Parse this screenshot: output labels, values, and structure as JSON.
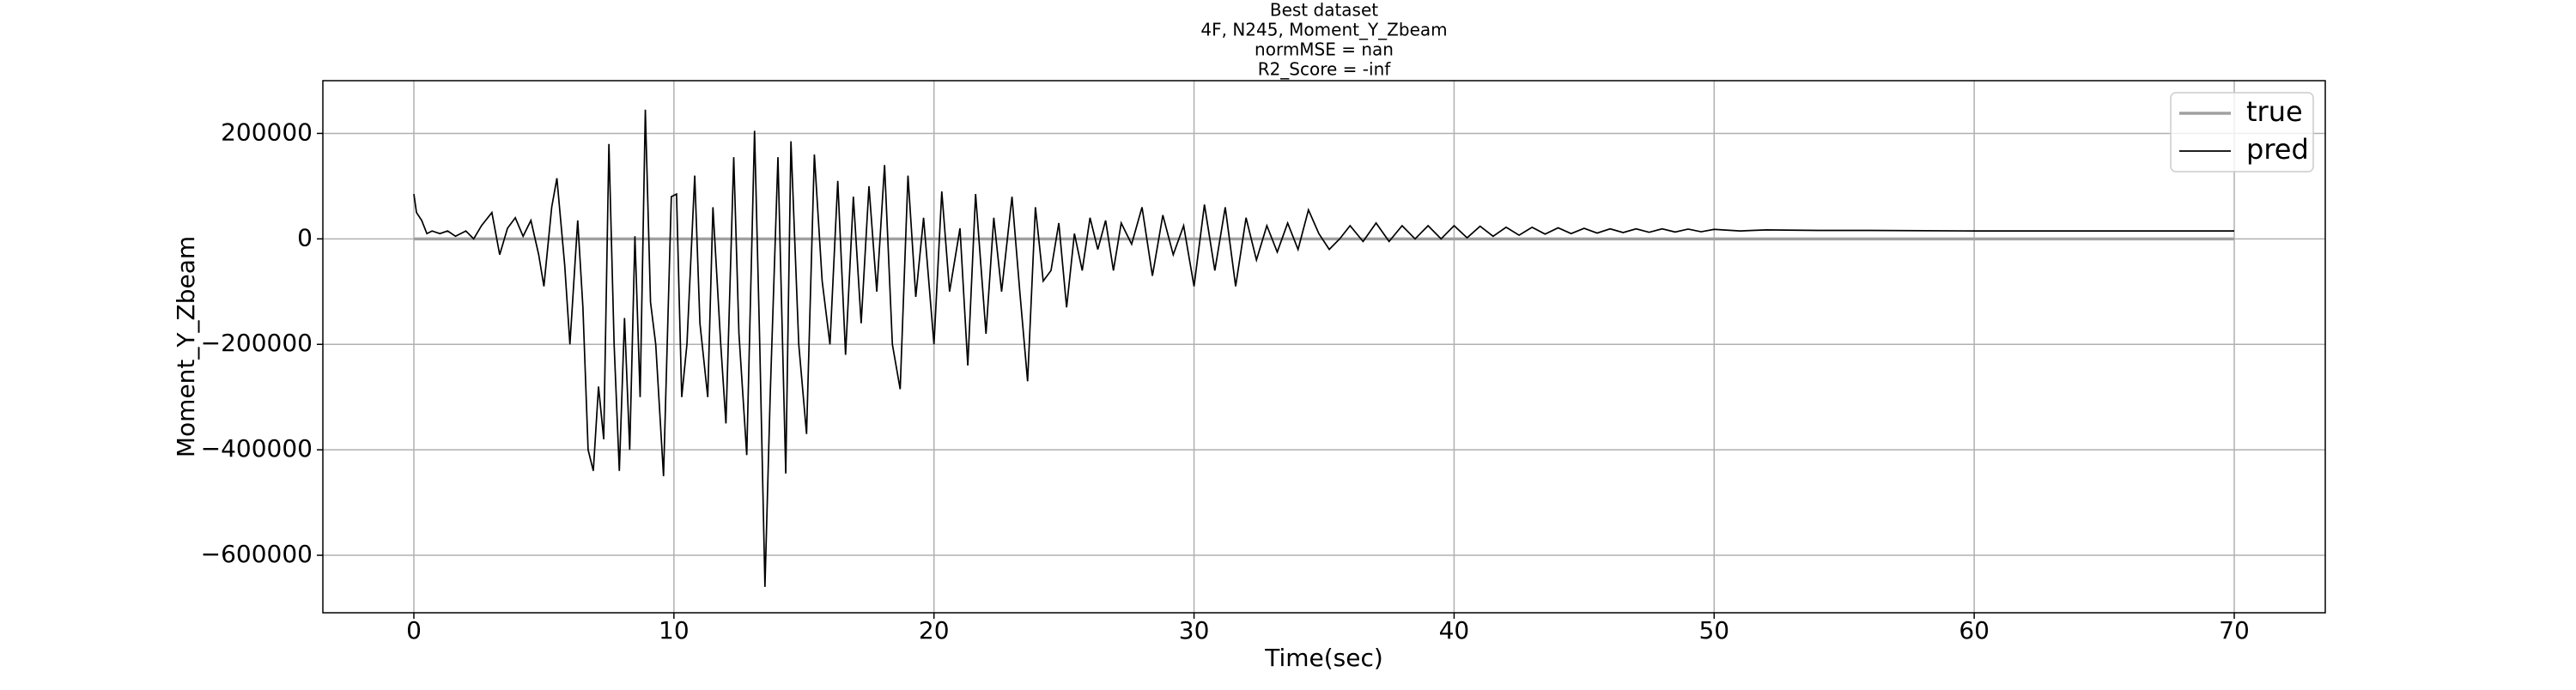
{
  "chart_data": {
    "type": "line",
    "title": [
      "Best dataset",
      "4F, N245, Moment_Y_Zbeam",
      "normMSE = nan",
      "R2_Score = -inf"
    ],
    "xlabel": "Time(sec)",
    "ylabel": "Moment_Y_Zbeam",
    "xlim": [
      -3.5,
      73.5
    ],
    "ylim": [
      -709000,
      300000
    ],
    "xticks": [
      0,
      10,
      20,
      30,
      40,
      50,
      60,
      70
    ],
    "yticks": [
      {
        "value": -600000,
        "label": "−600000"
      },
      {
        "value": -400000,
        "label": "−400000"
      },
      {
        "value": -200000,
        "label": "−200000"
      },
      0,
      200000
    ],
    "grid": true,
    "legend": "upper right",
    "series": [
      {
        "name": "true",
        "color": "#a0a0a0",
        "x": [
          0,
          70
        ],
        "values": [
          0,
          0
        ]
      },
      {
        "name": "pred",
        "color": "#000000",
        "x": [
          0,
          0.1,
          0.3,
          0.5,
          0.7,
          1.0,
          1.3,
          1.6,
          2.0,
          2.3,
          2.6,
          3.0,
          3.3,
          3.6,
          3.9,
          4.2,
          4.5,
          4.8,
          5.0,
          5.3,
          5.5,
          5.8,
          6.0,
          6.3,
          6.5,
          6.7,
          6.9,
          7.1,
          7.3,
          7.5,
          7.7,
          7.9,
          8.1,
          8.3,
          8.5,
          8.7,
          8.9,
          9.1,
          9.3,
          9.6,
          9.9,
          10.1,
          10.3,
          10.5,
          10.8,
          11.0,
          11.3,
          11.5,
          11.8,
          12.0,
          12.3,
          12.5,
          12.8,
          13.1,
          13.3,
          13.5,
          13.7,
          14.0,
          14.3,
          14.5,
          14.8,
          15.1,
          15.4,
          15.7,
          16.0,
          16.3,
          16.6,
          16.9,
          17.2,
          17.5,
          17.8,
          18.1,
          18.4,
          18.7,
          19.0,
          19.3,
          19.6,
          20.0,
          20.3,
          20.6,
          21.0,
          21.3,
          21.6,
          22.0,
          22.3,
          22.6,
          23.0,
          23.3,
          23.6,
          23.9,
          24.2,
          24.5,
          24.8,
          25.1,
          25.4,
          25.7,
          26.0,
          26.3,
          26.6,
          26.9,
          27.2,
          27.6,
          28.0,
          28.4,
          28.8,
          29.2,
          29.6,
          30.0,
          30.4,
          30.8,
          31.2,
          31.6,
          32.0,
          32.4,
          32.8,
          33.2,
          33.6,
          34.0,
          34.4,
          34.8,
          35.2,
          35.6,
          36.0,
          36.5,
          37.0,
          37.5,
          38.0,
          38.5,
          39.0,
          39.5,
          40.0,
          40.5,
          41,
          41.5,
          42,
          42.5,
          43,
          43.5,
          44,
          44.5,
          45,
          45.5,
          46,
          46.5,
          47,
          47.5,
          48,
          48.5,
          49,
          49.5,
          50,
          51,
          52,
          54,
          56,
          60,
          65,
          70
        ],
        "values": [
          85000,
          50000,
          35000,
          10000,
          15000,
          10000,
          15000,
          5000,
          15000,
          0,
          25000,
          50000,
          -30000,
          20000,
          40000,
          5000,
          35000,
          -30000,
          -90000,
          60000,
          115000,
          -50000,
          -200000,
          35000,
          -130000,
          -400000,
          -440000,
          -280000,
          -380000,
          180000,
          -200000,
          -440000,
          -150000,
          -400000,
          5000,
          -300000,
          245000,
          -120000,
          -200000,
          -450000,
          80000,
          85000,
          -300000,
          -200000,
          120000,
          -160000,
          -300000,
          60000,
          -200000,
          -350000,
          155000,
          -180000,
          -410000,
          205000,
          -200000,
          -660000,
          -300000,
          155000,
          -445000,
          185000,
          -200000,
          -370000,
          160000,
          -80000,
          -200000,
          110000,
          -220000,
          80000,
          -160000,
          100000,
          -100000,
          140000,
          -200000,
          -285000,
          120000,
          -110000,
          40000,
          -200000,
          90000,
          -100000,
          20000,
          -240000,
          85000,
          -180000,
          40000,
          -100000,
          80000,
          -100000,
          -270000,
          60000,
          -80000,
          -60000,
          30000,
          -130000,
          10000,
          -60000,
          40000,
          -20000,
          35000,
          -60000,
          30000,
          -10000,
          60000,
          -70000,
          45000,
          -30000,
          25000,
          -90000,
          65000,
          -60000,
          60000,
          -90000,
          40000,
          -40000,
          25000,
          -25000,
          30000,
          -20000,
          55000,
          10000,
          -20000,
          0,
          25000,
          -5000,
          30000,
          -5000,
          25000,
          0,
          25000,
          0,
          25000,
          2000,
          24000,
          5000,
          22000,
          7000,
          22000,
          9000,
          21000,
          10000,
          20000,
          11000,
          19000,
          12000,
          19000,
          12500,
          19000,
          13000,
          18500,
          13500,
          18000,
          15000,
          17000,
          16000,
          16000,
          15000,
          15000,
          15000
        ]
      }
    ]
  }
}
